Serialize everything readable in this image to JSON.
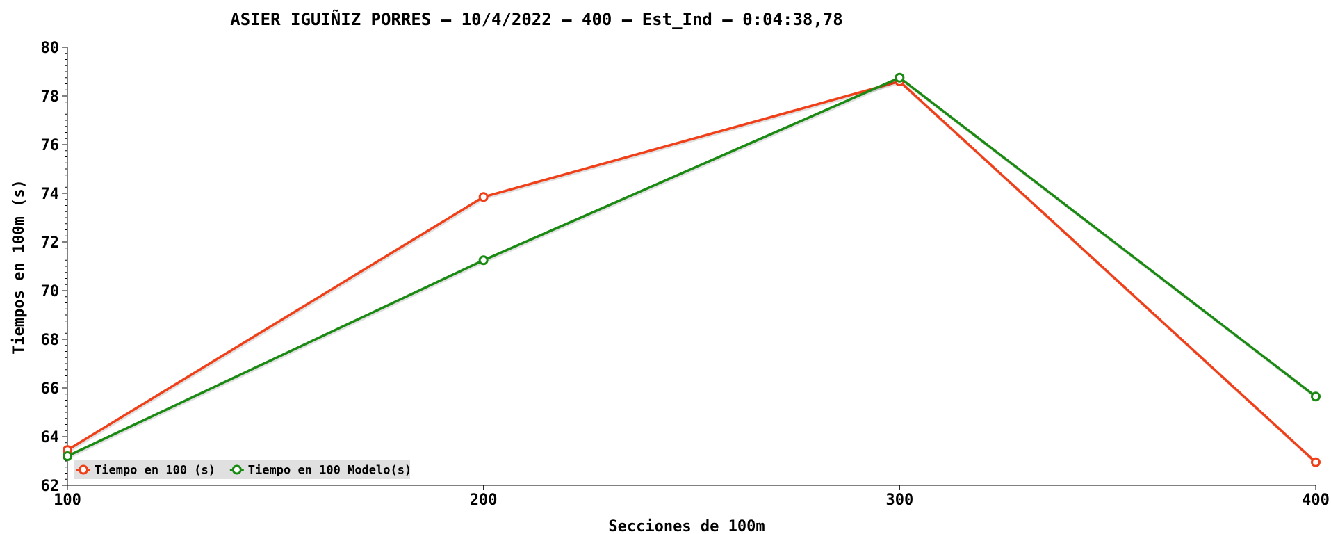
{
  "chart_data": {
    "type": "line",
    "title": "ASIER IGUIÑIZ PORRES – 10/4/2022 – 400 – Est_Ind – 0:04:38,78",
    "xlabel": "Secciones de 100m",
    "ylabel": "Tiempos en 100m (s)",
    "x": [
      100,
      200,
      300,
      400
    ],
    "x_tick_labels": [
      "100",
      "200",
      "300",
      "400"
    ],
    "xlim": [
      100,
      400
    ],
    "ylim": [
      62,
      80
    ],
    "y_ticks": [
      62,
      64,
      66,
      68,
      70,
      72,
      74,
      76,
      78,
      80
    ],
    "y_minor_step": 0.25,
    "grid": false,
    "legend_position": "bottom-left",
    "series": [
      {
        "name": "Tiempo en 100 (s)",
        "values": [
          63.45,
          73.85,
          78.6,
          62.95
        ],
        "color": "#f0401a"
      },
      {
        "name": "Tiempo en 100 Modelo(s)",
        "values": [
          63.2,
          71.25,
          78.75,
          65.65
        ],
        "color": "#1a8a12"
      }
    ]
  }
}
